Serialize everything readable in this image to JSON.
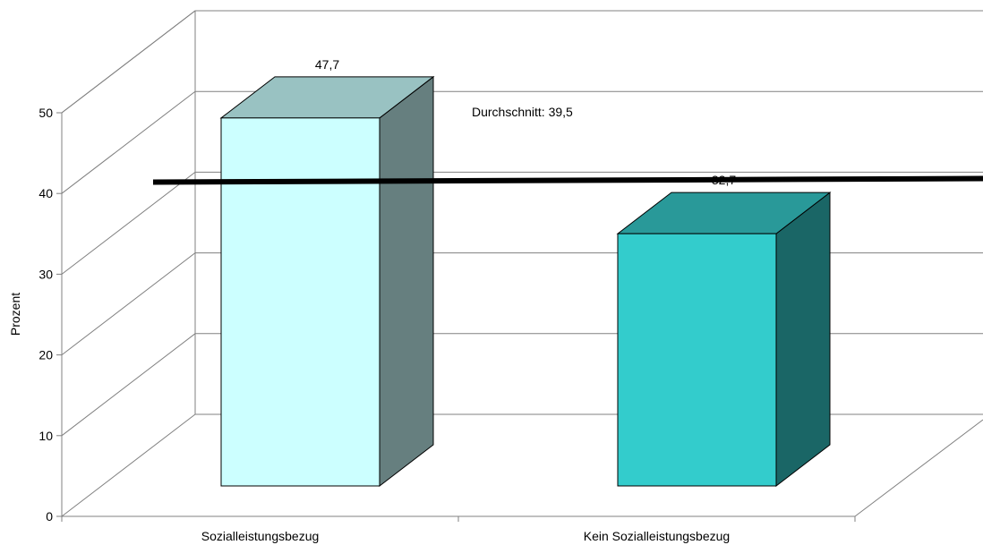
{
  "chart_data": {
    "type": "bar",
    "style": "3d",
    "categories": [
      "Sozialleistungsbezug",
      "Kein Sozialleistungsbezug"
    ],
    "values": [
      47.7,
      32.7
    ],
    "value_labels": [
      "47,7",
      "32,7"
    ],
    "ylabel": "Prozent",
    "ylim": [
      0,
      50
    ],
    "yticks": [
      0,
      10,
      20,
      30,
      40,
      50
    ],
    "grid": true,
    "reference_line": {
      "value": 39.5,
      "label": "Durchschnitt: 39,5"
    },
    "colors": {
      "bars": [
        "#ccffff",
        "#33cccc"
      ],
      "bar_tops": [
        "#99c2c2",
        "#299999"
      ],
      "bar_sides": [
        "#667f7f",
        "#1a6666"
      ],
      "reference_line": "#000000",
      "grid": "#808080"
    }
  }
}
